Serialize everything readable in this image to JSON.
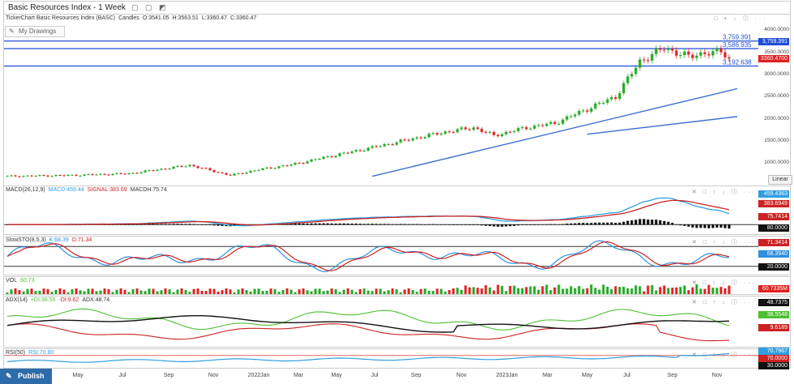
{
  "window": {
    "title": "Basic Resources Index - 1 Week"
  },
  "info": {
    "source": "TickerChart Basic Resources Index (BASC)",
    "type": "Candles",
    "open": "O:3541.05",
    "high": "H:3563.51",
    "low": "L:3360.47",
    "close": "C:3360.47"
  },
  "drawings_label": "My Drawings",
  "publish_label": "Publish",
  "scale_label": "Linear",
  "colors": {
    "up": "#22a822",
    "down": "#e02020",
    "hline": "#1f4fd6",
    "trend": "#3a6fd0",
    "macd": "#2e9fe0",
    "signal": "#cc2222",
    "k": "#2e8fe0",
    "d": "#cc2222",
    "adx": "#111111",
    "plus_di": "#4cc030",
    "minus_di": "#cc2222",
    "rsi": "#2e9fe0",
    "rsi_line": "#e06060"
  },
  "hlines": [
    {
      "value": 3759.391,
      "label": "3,759.391"
    },
    {
      "value": 3586.935,
      "label": "3,586.935"
    },
    {
      "value": 3192.638,
      "label": "3,192.638"
    }
  ],
  "price_ticks": [
    "4000.0000",
    "3500.0000",
    "3000.0000",
    "2500.0000",
    "2000.0000",
    "1500.0000",
    "1000.0000"
  ],
  "last_price": "3360.4700",
  "x_labels": [
    "May",
    "Jul",
    "Sep",
    "Nov",
    "2022Jan",
    "Mar",
    "May",
    "Jul",
    "Sep",
    "Nov",
    "2023Jan",
    "Mar",
    "May",
    "Jul",
    "Sep",
    "Nov"
  ],
  "indicators": {
    "macd": {
      "name": "MACD(26,12,9)",
      "v1": "MACD:459.44",
      "v2": "SIGNAL:383.69",
      "v3": "MACDH:75.74",
      "labels": [
        "459.4363",
        "383.6949",
        "75.7414",
        "80.0000"
      ]
    },
    "sto": {
      "name": "SlowSTO(8,5,3)",
      "v1": "K:68.39",
      "v2": "D:71.34",
      "labels": [
        "71.3414",
        "68.3940",
        "20.0000"
      ]
    },
    "vol": {
      "name": "VOL",
      "v1": "60.73",
      "labels": [
        "60.7335M"
      ]
    },
    "adx": {
      "name": "ADX(14)",
      "v1": "+DI:38.55",
      "v2": "-DI:9.62",
      "v3": "ADX:48.74",
      "labels": [
        "48.7375",
        "38.5548",
        "9.6189"
      ]
    },
    "rsi": {
      "name": "RSI(50)",
      "v1": "RSI:70.80",
      "labels": [
        "70.7967",
        "70.0000",
        "30.0000"
      ]
    }
  },
  "chart_data": {
    "type": "candlestick",
    "title": "Basic Resources Index - 1 Week",
    "series_anchors_x_index": [
      0,
      15,
      30,
      45,
      55,
      62,
      70,
      78,
      90,
      100,
      108,
      115,
      120,
      128,
      135,
      145,
      150,
      156,
      162,
      168,
      172,
      174,
      176,
      178
    ],
    "close_anchors": [
      700,
      720,
      760,
      950,
      720,
      850,
      960,
      1120,
      1350,
      1550,
      1700,
      1800,
      1620,
      1800,
      1900,
      2300,
      2500,
      3300,
      3600,
      3400,
      3500,
      3470,
      3540,
      3360
    ],
    "n_bars": 179,
    "ylim": [
      600,
      4100
    ]
  }
}
